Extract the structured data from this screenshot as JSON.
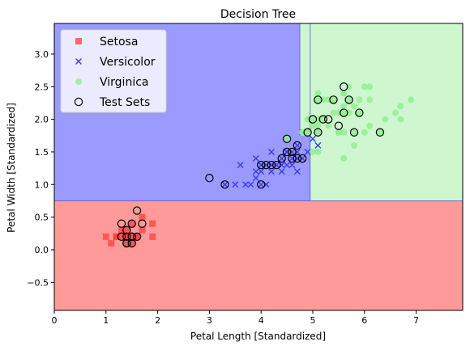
{
  "chart_data": {
    "type": "scatter",
    "title": "Decision Tree",
    "xlabel": "Petal Length [Standardized]",
    "ylabel": "Petal Width [Standardized]",
    "xlim": [
      0,
      7.9
    ],
    "ylim": [
      -0.93,
      3.47
    ],
    "xticks": [
      "0",
      "1",
      "2",
      "3",
      "4",
      "5",
      "6",
      "7"
    ],
    "yticks": [
      "−0.5",
      "0.0",
      "0.5",
      "1.0",
      "1.5",
      "2.0",
      "2.5",
      "3.0"
    ],
    "xtick_values": [
      0,
      1,
      2,
      3,
      4,
      5,
      6,
      7
    ],
    "ytick_values": [
      -0.5,
      0,
      0.5,
      1,
      1.5,
      2,
      2.5,
      3
    ],
    "grid": false,
    "legend_position": "top-left",
    "decision_regions": [
      {
        "class": "Setosa",
        "color": "#ff9a9a",
        "x": [
          0,
          7.9
        ],
        "y": [
          -0.93,
          0.75
        ]
      },
      {
        "class": "Versicolor",
        "color": "#9a9aff",
        "x": [
          0,
          4.95
        ],
        "y": [
          0.75,
          3.47
        ]
      },
      {
        "class": "Versicolor",
        "color": "#9a9aff",
        "x": [
          4.75,
          4.95
        ],
        "y": [
          0.75,
          3.47
        ]
      },
      {
        "class": "Virginica",
        "color": "#cef7d0",
        "x": [
          4.95,
          7.9
        ],
        "y": [
          0.75,
          3.47
        ]
      },
      {
        "class": "Virginica",
        "color": "#cef7d0",
        "x": [
          4.75,
          4.95
        ],
        "y": [
          1.75,
          3.47
        ]
      }
    ],
    "series": [
      {
        "name": "Setosa",
        "marker": "square",
        "color": "#ff4040",
        "x": [
          1.4,
          1.3,
          1.5,
          1.7,
          1.6,
          1.0,
          1.9,
          1.1,
          1.2,
          1.4,
          1.3,
          1.5,
          1.7,
          1.4,
          1.9,
          1.6,
          1.5,
          1.4,
          1.2
        ],
        "y": [
          0.2,
          0.2,
          0.2,
          0.5,
          0.2,
          0.2,
          0.4,
          0.1,
          0.2,
          0.3,
          0.3,
          0.4,
          0.3,
          0.2,
          0.2,
          0.2,
          0.1,
          0.1,
          0.2
        ]
      },
      {
        "name": "Versicolor",
        "marker": "x",
        "color": "#3b3bff",
        "x": [
          4.7,
          4.5,
          4.9,
          4.0,
          4.6,
          4.5,
          4.7,
          3.3,
          4.6,
          3.9,
          3.5,
          4.2,
          4.0,
          4.7,
          3.6,
          4.4,
          4.5,
          4.1,
          4.5,
          3.9,
          4.8,
          4.0,
          4.9,
          4.7,
          4.3,
          4.4,
          4.8,
          5.0,
          4.5,
          3.8,
          3.7,
          3.9,
          5.1,
          4.5,
          4.7,
          4.4,
          4.1,
          4.0,
          4.4,
          4.6,
          4.0,
          3.3,
          4.2,
          4.2,
          4.3,
          4.1
        ],
        "y": [
          1.4,
          1.5,
          1.5,
          1.3,
          1.5,
          1.3,
          1.6,
          1.0,
          1.3,
          1.4,
          1.0,
          1.5,
          1.0,
          1.4,
          1.3,
          1.4,
          1.5,
          1.0,
          1.5,
          1.1,
          1.8,
          1.3,
          1.5,
          1.2,
          1.3,
          1.4,
          1.4,
          1.7,
          1.5,
          1.0,
          1.0,
          1.2,
          1.6,
          1.5,
          1.5,
          1.3,
          1.3,
          1.3,
          1.2,
          1.4,
          1.2,
          1.0,
          1.3,
          1.2,
          1.3,
          1.3
        ]
      },
      {
        "name": "Virginica",
        "marker": "circle",
        "color": "#90ee90",
        "x": [
          6.0,
          5.1,
          5.9,
          5.6,
          5.8,
          6.6,
          4.5,
          6.3,
          5.8,
          6.1,
          5.1,
          5.3,
          5.5,
          5.0,
          5.1,
          5.3,
          5.5,
          6.7,
          6.9,
          5.0,
          5.7,
          4.9,
          6.7,
          4.9,
          5.7,
          6.0,
          4.8,
          4.9,
          5.6,
          5.8,
          6.1,
          6.4,
          5.6,
          5.1,
          5.6,
          6.1,
          5.6,
          5.5,
          4.8,
          5.4,
          5.6,
          5.1,
          5.9,
          5.7,
          5.2,
          5.0,
          5.2,
          5.4,
          5.1
        ],
        "y": [
          2.5,
          1.9,
          2.1,
          1.8,
          2.2,
          2.1,
          1.7,
          1.8,
          1.8,
          2.5,
          2.0,
          1.9,
          2.1,
          2.0,
          2.4,
          2.3,
          1.8,
          2.2,
          2.3,
          1.5,
          2.3,
          2.0,
          2.0,
          1.8,
          2.1,
          1.8,
          1.8,
          1.8,
          2.1,
          1.6,
          1.9,
          2.0,
          2.2,
          1.5,
          1.4,
          2.3,
          2.4,
          1.8,
          1.8,
          2.1,
          2.4,
          2.3,
          2.3,
          2.5,
          2.3,
          1.9,
          2.0,
          2.3,
          1.8
        ]
      },
      {
        "name": "Test Sets",
        "marker": "open-circle",
        "color": "#000000",
        "x": [
          1.6,
          1.3,
          1.5,
          1.4,
          1.7,
          1.5,
          1.4,
          1.6,
          1.5,
          1.4,
          1.3,
          1.5,
          1.4,
          3.0,
          3.3,
          4.0,
          4.0,
          4.1,
          4.2,
          4.3,
          4.4,
          4.5,
          4.5,
          4.6,
          4.7,
          4.6,
          4.7,
          4.8,
          4.5,
          4.9,
          5.0,
          5.1,
          5.2,
          5.1,
          5.3,
          5.4,
          5.5,
          5.6,
          5.7,
          5.6,
          5.8,
          5.9,
          6.3
        ],
        "y": [
          0.6,
          0.4,
          0.4,
          0.3,
          0.4,
          0.2,
          0.2,
          0.2,
          0.1,
          0.1,
          0.2,
          0.2,
          0.1,
          1.1,
          1.0,
          1.0,
          1.3,
          1.3,
          1.3,
          1.3,
          1.4,
          1.5,
          1.7,
          1.5,
          1.6,
          1.4,
          1.4,
          1.4,
          1.5,
          1.8,
          2.0,
          1.8,
          2.0,
          2.3,
          2.0,
          2.3,
          1.9,
          2.1,
          2.3,
          2.5,
          1.8,
          2.1,
          1.8
        ]
      }
    ]
  }
}
